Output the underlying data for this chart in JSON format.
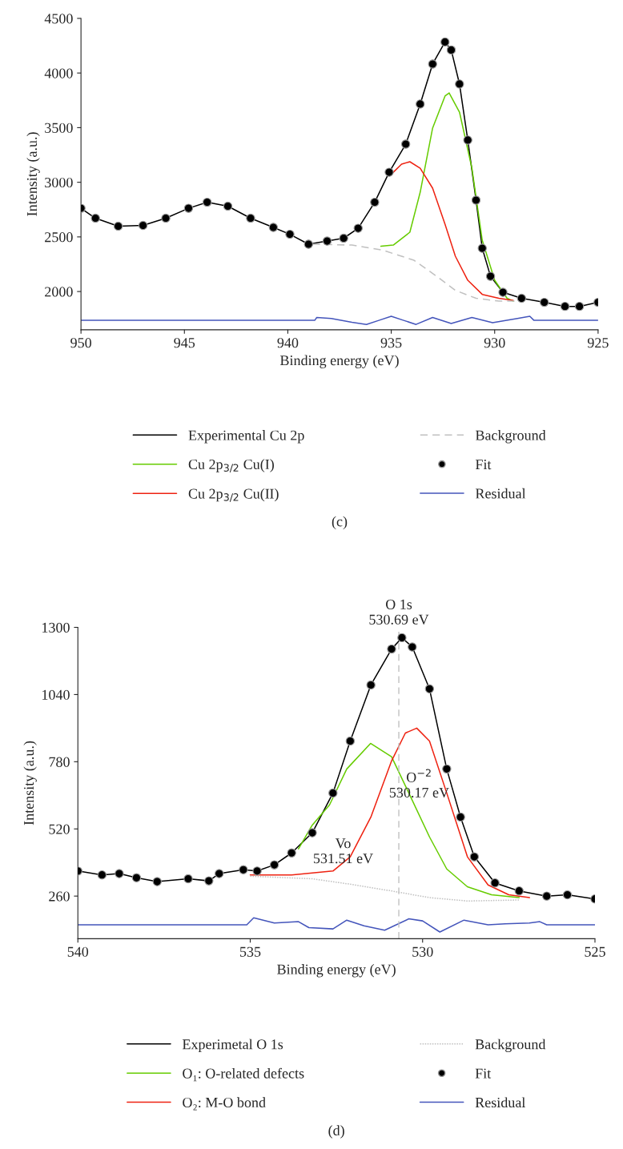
{
  "chart_data": [
    {
      "type": "line",
      "xlabel": "Binding energy (eV)",
      "ylabel": "Intensity (a.u.)",
      "xlim": [
        950,
        925
      ],
      "xticks": [
        950,
        945,
        940,
        935,
        930,
        925
      ],
      "ylim": [
        1650,
        4500
      ],
      "yticks": [
        2000,
        2500,
        3000,
        3500,
        4000,
        4500
      ],
      "grid": false,
      "legend": "bottom",
      "annotations": [
        "(c)"
      ],
      "series": [
        {
          "name": "Experimental Cu 2p",
          "color": "#000000",
          "line_style": "solid",
          "x": [
            950,
            949.3,
            948.2,
            947.0,
            945.9,
            944.8,
            943.9,
            942.9,
            941.8,
            940.7,
            939.9,
            939.0,
            938.1,
            937.3,
            936.6,
            935.8,
            935.1,
            934.3,
            933.6,
            933.0,
            932.4,
            932.1,
            931.7,
            931.3,
            930.9,
            930.6,
            930.2,
            929.6,
            928.7,
            927.6,
            926.6,
            925.9,
            925
          ],
          "values": [
            2762,
            2671,
            2598,
            2605,
            2671,
            2762,
            2817,
            2781,
            2671,
            2587,
            2524,
            2433,
            2462,
            2488,
            2579,
            2817,
            3092,
            3349,
            3716,
            4082,
            4284,
            4211,
            3899,
            3386,
            2836,
            2396,
            2139,
            1993,
            1938,
            1901,
            1864,
            1864,
            1901
          ]
        },
        {
          "name": "Cu 2p$_{3/2}$ Cu(I)",
          "color": "#66cc00",
          "line_style": "solid",
          "x": [
            935.5,
            934.9,
            934.1,
            933.6,
            933.0,
            932.4,
            932.2,
            931.7,
            931.1,
            930.6,
            930.0,
            929.4,
            929.1
          ],
          "values": [
            2414,
            2425,
            2543,
            2909,
            3496,
            3789,
            3818,
            3642,
            3129,
            2469,
            2103,
            1938,
            1912
          ]
        },
        {
          "name": "Cu 2p$_{3/2}$ Cu(II)",
          "color": "#ee2211",
          "line_style": "solid",
          "x": [
            934.9,
            934.5,
            934.1,
            933.6,
            933.0,
            932.4,
            931.9,
            931.3,
            930.6,
            929.8,
            929.1
          ],
          "values": [
            3092,
            3166,
            3188,
            3129,
            2946,
            2616,
            2323,
            2103,
            1974,
            1938,
            1919
          ]
        },
        {
          "name": "Background",
          "color": "#c0c0c0",
          "line_style": "dashed",
          "x": [
            938.8,
            936.9,
            935.4,
            933.9,
            932.8,
            931.9,
            930.9,
            929.8,
            928.7
          ],
          "values": [
            2433,
            2425,
            2378,
            2286,
            2139,
            2011,
            1938,
            1912,
            1912
          ]
        },
        {
          "name": "Fit",
          "type": "scatter",
          "color": "#000000",
          "marker": "circle",
          "x": [
            950,
            949.3,
            948.2,
            947.0,
            945.9,
            944.8,
            943.9,
            942.9,
            941.8,
            940.7,
            939.9,
            939.0,
            938.1,
            937.3,
            936.6,
            935.8,
            935.1,
            934.3,
            933.6,
            933.0,
            932.4,
            932.1,
            931.7,
            931.3,
            930.9,
            930.6,
            930.2,
            929.6,
            928.7,
            927.6,
            926.6,
            925.9,
            925
          ],
          "values": [
            2762,
            2671,
            2598,
            2605,
            2671,
            2762,
            2817,
            2781,
            2671,
            2587,
            2524,
            2433,
            2462,
            2488,
            2579,
            2817,
            3092,
            3349,
            3716,
            4082,
            4284,
            4211,
            3899,
            3386,
            2836,
            2396,
            2139,
            1993,
            1938,
            1901,
            1864,
            1864,
            1901
          ]
        },
        {
          "name": "Residual",
          "color": "#4455bb",
          "line_style": "solid",
          "x": [
            950,
            938.7,
            938.6,
            937.9,
            936.9,
            936.2,
            935.6,
            935.0,
            934.4,
            933.8,
            933.0,
            932.1,
            931.1,
            930.1,
            928.9,
            928.3,
            928.1,
            925
          ],
          "values": [
            1736,
            1736,
            1762,
            1754,
            1718,
            1699,
            1736,
            1773,
            1736,
            1699,
            1762,
            1707,
            1762,
            1714,
            1754,
            1773,
            1736,
            1736
          ]
        }
      ]
    },
    {
      "type": "line",
      "xlabel": "Binding energy (eV)",
      "ylabel": "Intensity (a.u.)",
      "xlim": [
        540,
        525
      ],
      "xticks": [
        540,
        535,
        530,
        525
      ],
      "ylim": [
        95,
        1300
      ],
      "yticks": [
        260,
        520,
        780,
        1040,
        1300
      ],
      "grid": false,
      "legend": "bottom",
      "ref_lines": [
        {
          "axis": "x",
          "value": 530.69,
          "label": "O 1s\n530.69 eV",
          "color": "#c0c0c0",
          "line_style": "dashed"
        }
      ],
      "annotations": [
        "O$^{−2}$\n530.17 eV",
        "Vo\n531.51 eV",
        "(d)"
      ],
      "series": [
        {
          "name": "Experimetal O 1s",
          "color": "#000000",
          "line_style": "solid",
          "x": [
            540,
            539.3,
            538.8,
            538.3,
            537.7,
            536.8,
            536.2,
            535.9,
            535.2,
            534.8,
            534.3,
            533.8,
            533.2,
            532.6,
            532.1,
            531.5,
            530.9,
            530.6,
            530.3,
            529.8,
            529.3,
            528.9,
            528.5,
            527.9,
            527.2,
            526.4,
            525.8,
            525
          ],
          "values": [
            357,
            342,
            347,
            331,
            316,
            327,
            319,
            347,
            362,
            357,
            381,
            427,
            505,
            659,
            860,
            1077,
            1216,
            1260,
            1224,
            1062,
            752,
            566,
            412,
            311,
            280,
            260,
            265,
            249
          ]
        },
        {
          "name": "O₁: O-related defects",
          "color": "#66cc00",
          "line_style": "solid",
          "x": [
            533.6,
            533.2,
            532.7,
            532.2,
            531.51,
            530.9,
            530.4,
            529.8,
            529.3,
            528.7,
            528.0,
            527.2
          ],
          "values": [
            443,
            535,
            613,
            752,
            851,
            799,
            659,
            489,
            365,
            296,
            265,
            254
          ]
        },
        {
          "name": "O₂: M-O bond",
          "color": "#ee2211",
          "line_style": "solid",
          "x": [
            535.0,
            533.8,
            532.6,
            532.1,
            531.5,
            530.9,
            530.5,
            530.17,
            529.8,
            529.3,
            528.7,
            528.1,
            527.5,
            526.9
          ],
          "values": [
            342,
            342,
            357,
            412,
            566,
            783,
            891,
            910,
            860,
            659,
            412,
            303,
            265,
            254
          ]
        },
        {
          "name": "Background",
          "color": "#c0c0c0",
          "line_style": "dotted",
          "x": [
            535.0,
            533.2,
            532.1,
            530.9,
            529.8,
            528.7,
            527.2
          ],
          "values": [
            337,
            327,
            306,
            280,
            254,
            241,
            245
          ]
        },
        {
          "name": "Fit",
          "type": "scatter",
          "color": "#000000",
          "marker": "circle",
          "x": [
            540,
            539.3,
            538.8,
            538.3,
            537.7,
            536.8,
            536.2,
            535.9,
            535.2,
            534.8,
            534.3,
            533.8,
            533.2,
            532.6,
            532.1,
            531.5,
            530.9,
            530.6,
            530.3,
            529.8,
            529.3,
            528.9,
            528.5,
            527.9,
            527.2,
            526.4,
            525.8,
            525
          ],
          "values": [
            357,
            342,
            347,
            331,
            316,
            327,
            319,
            347,
            362,
            357,
            381,
            427,
            505,
            659,
            860,
            1077,
            1216,
            1260,
            1224,
            1062,
            752,
            566,
            412,
            311,
            280,
            260,
            265,
            249
          ]
        },
        {
          "name": "Residual",
          "color": "#4455bb",
          "line_style": "solid",
          "x": [
            540,
            535.1,
            534.9,
            534.3,
            533.6,
            533.3,
            532.6,
            532.2,
            531.7,
            531.1,
            530.4,
            530.0,
            529.5,
            528.8,
            528.1,
            527.6,
            526.9,
            526.6,
            526.4,
            525
          ],
          "values": [
            149,
            149,
            176,
            156,
            161,
            138,
            133,
            167,
            145,
            128,
            172,
            164,
            121,
            167,
            149,
            153,
            156,
            161,
            149,
            149
          ]
        }
      ]
    }
  ]
}
